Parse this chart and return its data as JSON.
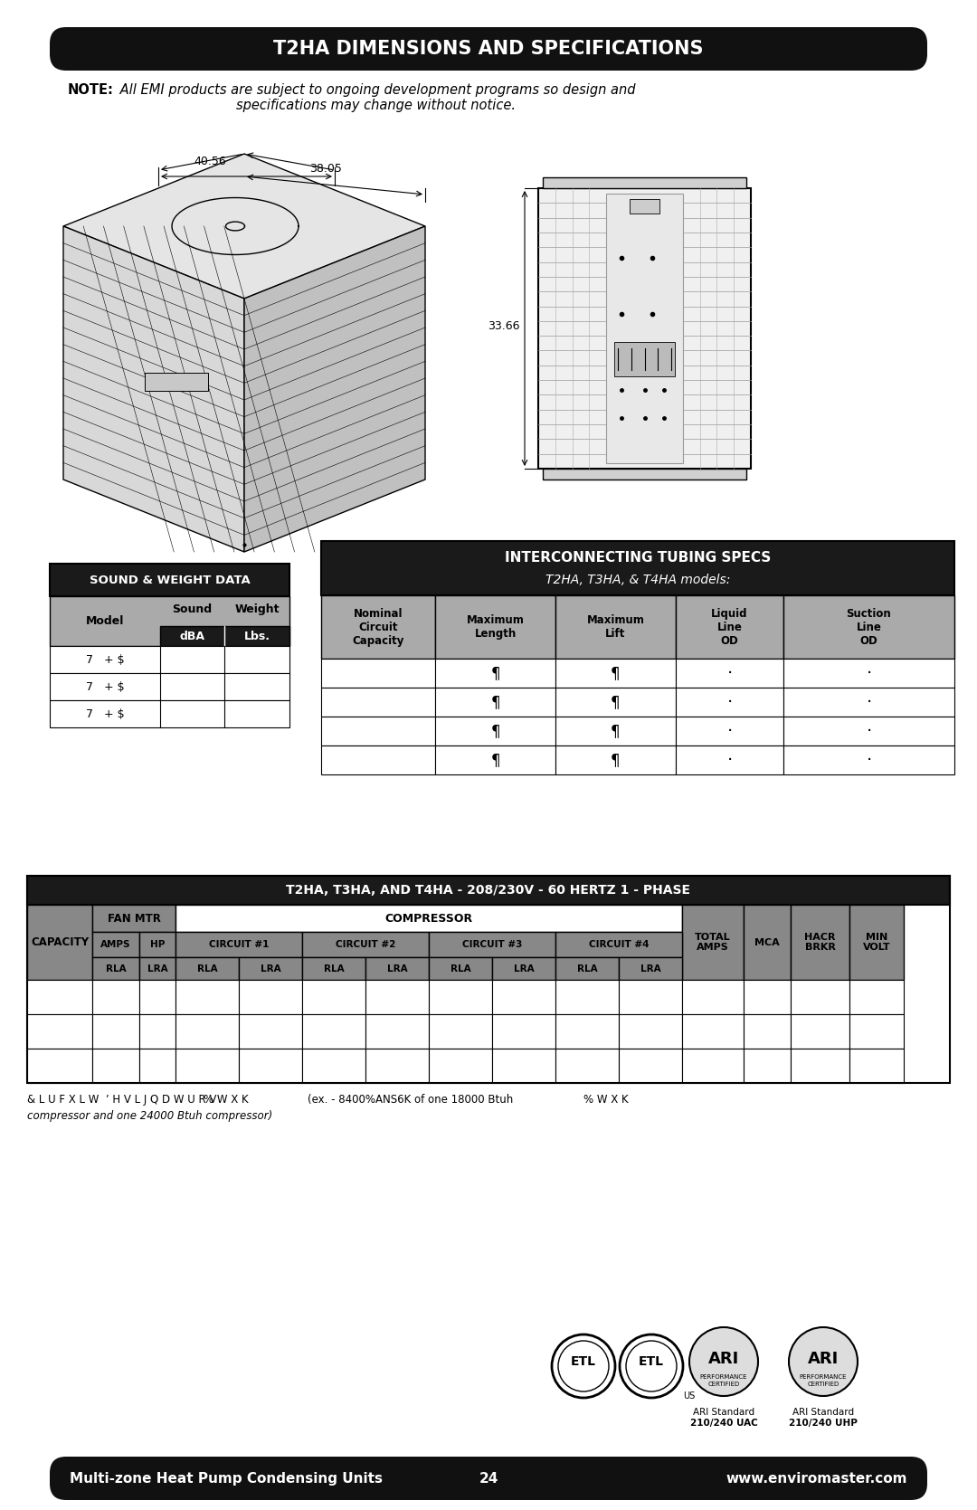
{
  "title": "T2HA DIMENSIONS AND SPECIFICATIONS",
  "note_bold": "NOTE:",
  "note_italic": " All EMI products are subject to ongoing development programs so design and\nspecifications may change without notice.",
  "dim1": "40.56",
  "dim2": "38.05",
  "dim3": "33.66",
  "sound_weight_title": "SOUND & WEIGHT DATA",
  "sound_col": "Sound",
  "weight_col": "Weight",
  "model_col": "Model",
  "dba_col": "dBA",
  "lbs_col": "Lbs.",
  "sound_rows": [
    "7   + $",
    "7   + $",
    "7   + $"
  ],
  "tubing_title": "INTERCONNECTING TUBING SPECS",
  "tubing_subtitle": "T2HA, T3HA, & T4HA models:",
  "tubing_cols": [
    "Nominal\nCircuit\nCapacity",
    "Maximum\nLength",
    "Maximum\nLift",
    "Liquid\nLine\nOD",
    "Suction\nLine\nOD"
  ],
  "tubing_rows": 4,
  "main_table_title": "T2HA, T3HA, AND T4HA - 208/230V - 60 HERTZ 1 - PHASE",
  "fan_mtr": "FAN MTR",
  "compressor": "COMPRESSOR",
  "capacity": "CAPACITY",
  "amps": "AMPS",
  "hp": "HP",
  "circuit1": "CIRCUIT #1",
  "circuit2": "CIRCUIT #2",
  "circuit3": "CIRCUIT #3",
  "circuit4": "CIRCUIT #4",
  "total_amps": "TOTAL\nAMPS",
  "mca": "MCA",
  "hacr_brkr": "HACR\nBRKR",
  "min_volt": "MIN\nVOLT",
  "rla": "RLA",
  "lra": "LRA",
  "footer_left": "Multi-zone Heat Pump Condensing Units",
  "footer_page": "24",
  "footer_right": "www.enviromaster.com",
  "bg_color": "#ffffff",
  "header_bg": "#111111",
  "header_fg": "#ffffff",
  "gray_header": "#888888",
  "gray_sub": "#aaaaaa",
  "footer_bg": "#111111",
  "footer_fg": "#ffffff",
  "ARI_text1": "ARI Standard",
  "ARI_text2": "210/240 UAC",
  "ARI_text3": "ARI Standard",
  "ARI_text4": "210/240 UHP"
}
